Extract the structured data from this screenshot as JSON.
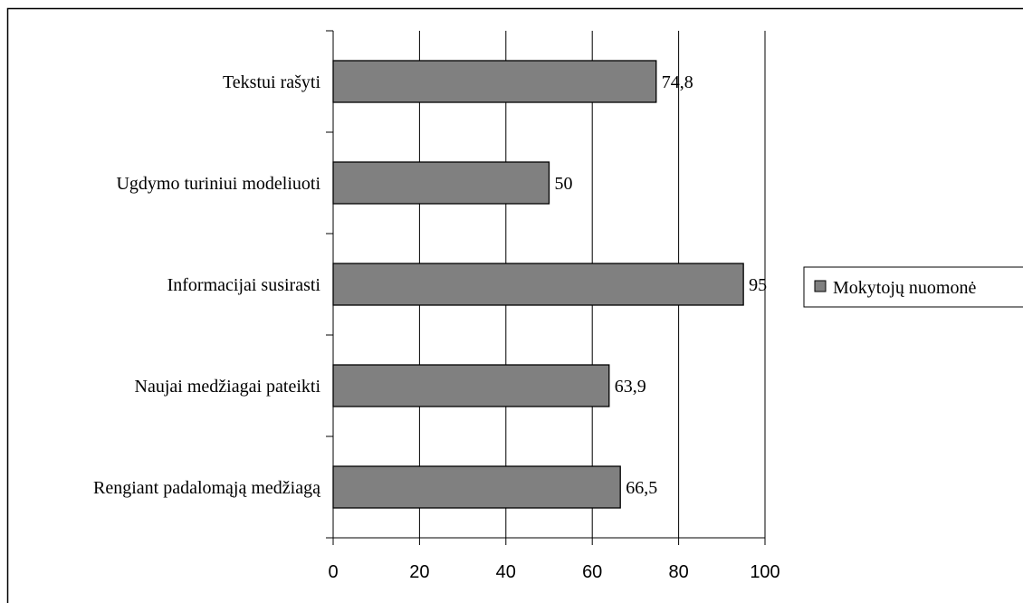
{
  "chart_data": {
    "type": "bar",
    "orientation": "horizontal",
    "categories": [
      "Tekstui rašyti",
      "Ugdymo turiniui modeliuoti",
      "Informacijai susirasti",
      "Naujai medžiagai pateikti",
      "Rengiant padalomąją medžiagą"
    ],
    "series": [
      {
        "name": "Mokytojų nuomonė",
        "values": [
          74.8,
          50,
          95,
          63.9,
          66.5
        ],
        "value_labels": [
          "74,8",
          "50",
          "95",
          "63,9",
          "66,5"
        ],
        "color": "#808080"
      }
    ],
    "xlim": [
      0,
      100
    ],
    "x_ticks": [
      0,
      20,
      40,
      60,
      80,
      100
    ],
    "x_tick_labels": [
      "0",
      "20",
      "40",
      "60",
      "80",
      "100"
    ],
    "title": "",
    "xlabel": "",
    "ylabel": "",
    "grid": "vertical",
    "legend_position": "right"
  }
}
